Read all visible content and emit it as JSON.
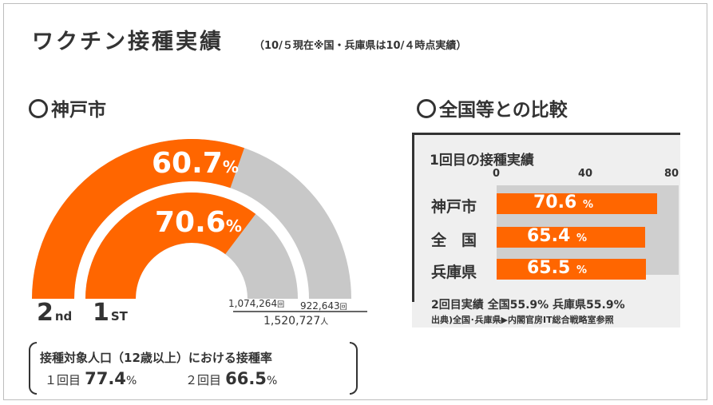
{
  "header": {
    "title": "ワクチン接種実績",
    "subtitle": "（10/５現在※国・兵庫県は10/４時点実績）"
  },
  "kobe": {
    "heading": "神戸市",
    "outer": {
      "rank_num": "2",
      "rank_sup": "nd",
      "value": "60.7",
      "unit": "%",
      "rate": 60.7
    },
    "inner": {
      "rank_num": "1",
      "rank_sup": "ST",
      "value": "70.6",
      "unit": "%",
      "rate": 70.6
    },
    "count_first": "1,074,264",
    "count_first_unit": "回",
    "count_second": "922,643",
    "count_second_unit": "回",
    "population": "1,520,727",
    "population_unit": "人",
    "note_title": "接種対象人口（12歳以上）における接種率",
    "note_first_label": "１回目",
    "note_first_value": "77.4",
    "note_first_unit": "%",
    "note_second_label": "２回目",
    "note_second_value": "66.5",
    "note_second_unit": "%"
  },
  "comparison": {
    "heading": "全国等との比較",
    "panel_title": "1回目の接種実績",
    "axis_ticks": [
      "0",
      "40",
      "80"
    ],
    "footer_line1": "2回目実績 全国55.9% 兵庫県55.9%",
    "footer_line2": "出典)全国･兵庫県▶内閣官房IT総合戦略室参照"
  },
  "chart_data": {
    "type": "bar",
    "title": "1回目の接種実績",
    "categories": [
      "神戸市",
      "全　国",
      "兵庫県"
    ],
    "values": [
      70.6,
      65.4,
      65.5
    ],
    "value_labels": [
      "70.6",
      "65.4",
      "65.5"
    ],
    "unit": "%",
    "xlim": [
      0,
      80
    ],
    "ticks": [
      0,
      40,
      80
    ],
    "orientation": "horizontal"
  },
  "colors": {
    "accent": "#ff6600",
    "remainder": "#c8c8c8",
    "text": "#333333"
  }
}
